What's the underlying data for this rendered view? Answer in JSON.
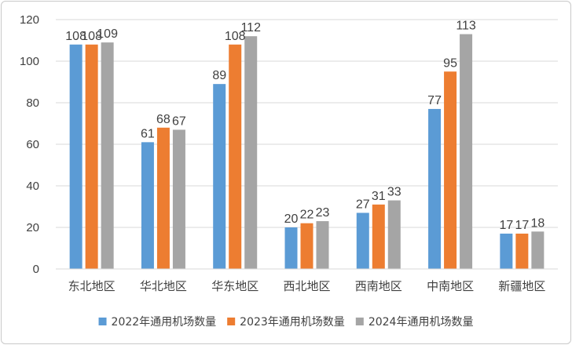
{
  "chart_data": {
    "type": "bar",
    "title": "",
    "xlabel": "",
    "ylabel": "",
    "ylim": [
      0,
      120
    ],
    "y_ticks": [
      "0",
      "20",
      "40",
      "60",
      "80",
      "100",
      "120"
    ],
    "grid": "horizontal",
    "legend_position": "bottom",
    "categories": [
      "东北地区",
      "华北地区",
      "华东地区",
      "西北地区",
      "西南地区",
      "中南地区",
      "新疆地区"
    ],
    "series": [
      {
        "name": "2022年通用机场数量",
        "color": "#5b9bd5",
        "values": [
          108,
          61,
          89,
          20,
          27,
          77,
          17
        ]
      },
      {
        "name": "2023年通用机场数量",
        "color": "#ed7d31",
        "values": [
          108,
          68,
          108,
          22,
          31,
          95,
          17
        ]
      },
      {
        "name": "2024年通用机场数量",
        "color": "#a5a5a5",
        "values": [
          109,
          67,
          112,
          23,
          33,
          113,
          18
        ]
      }
    ]
  }
}
